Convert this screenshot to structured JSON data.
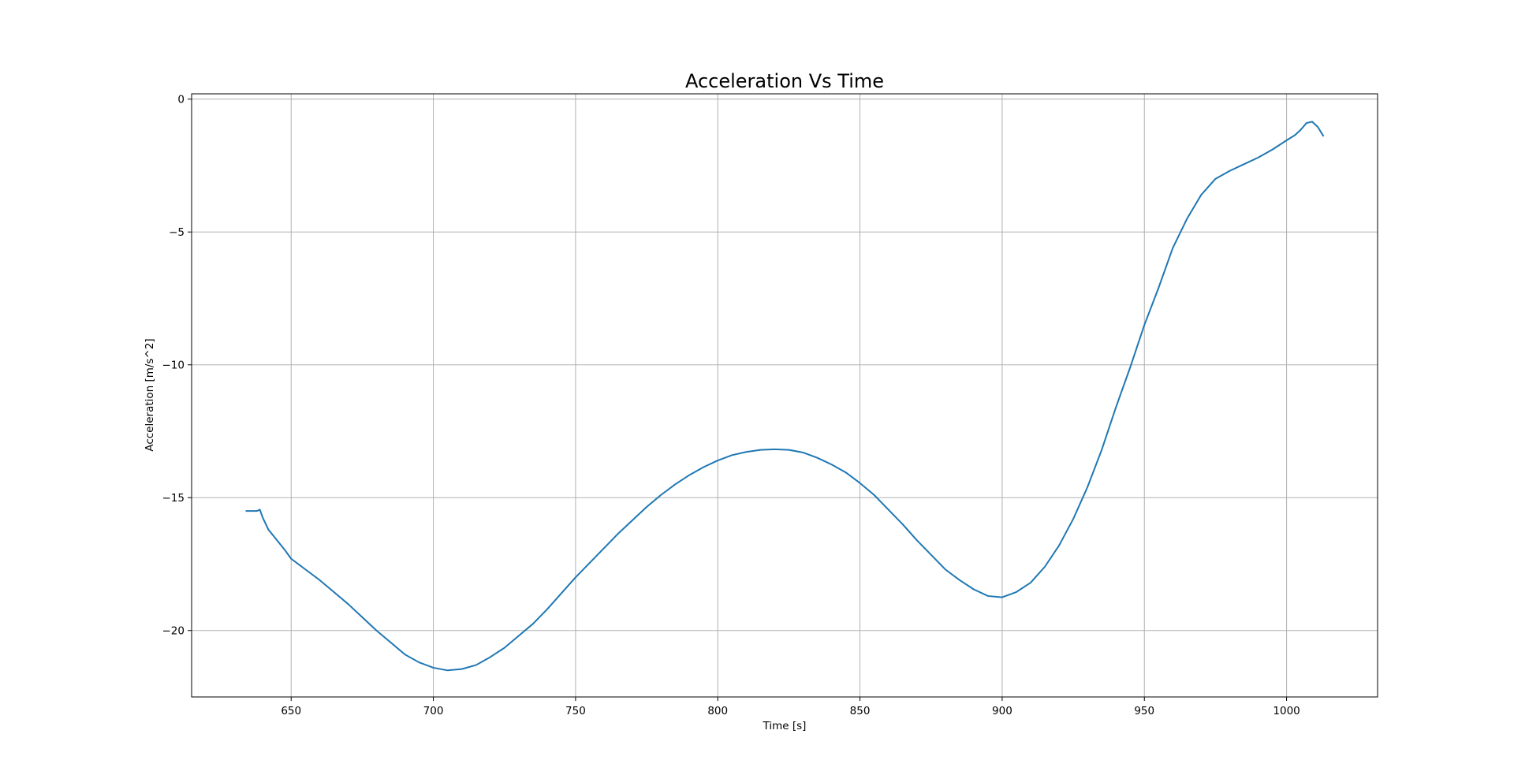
{
  "chart_data": {
    "type": "line",
    "title": "Acceleration Vs Time",
    "xlabel": "Time [s]",
    "ylabel": "Acceleration [m/s^2]",
    "xlim": [
      615,
      1032
    ],
    "ylim": [
      -22.5,
      0.2
    ],
    "grid": true,
    "xticks": [
      650,
      700,
      750,
      800,
      850,
      900,
      950,
      1000
    ],
    "yticks": [
      0,
      -5,
      -10,
      -15,
      -20
    ],
    "xtick_labels": [
      "650",
      "700",
      "750",
      "800",
      "850",
      "900",
      "950",
      "1000"
    ],
    "ytick_labels": [
      "0",
      "−5",
      "−10",
      "−15",
      "−20"
    ],
    "series": [
      {
        "color": "#1f77b4",
        "points": [
          [
            634,
            -15.5
          ],
          [
            638,
            -15.5
          ],
          [
            639,
            -15.45
          ],
          [
            640,
            -15.75
          ],
          [
            642,
            -16.2
          ],
          [
            645,
            -16.6
          ],
          [
            648,
            -17.0
          ],
          [
            650,
            -17.3
          ],
          [
            655,
            -17.7
          ],
          [
            660,
            -18.1
          ],
          [
            665,
            -18.55
          ],
          [
            670,
            -19.0
          ],
          [
            675,
            -19.5
          ],
          [
            680,
            -20.0
          ],
          [
            685,
            -20.45
          ],
          [
            690,
            -20.9
          ],
          [
            695,
            -21.2
          ],
          [
            700,
            -21.4
          ],
          [
            705,
            -21.5
          ],
          [
            710,
            -21.45
          ],
          [
            715,
            -21.3
          ],
          [
            720,
            -21.0
          ],
          [
            725,
            -20.65
          ],
          [
            730,
            -20.2
          ],
          [
            735,
            -19.75
          ],
          [
            740,
            -19.2
          ],
          [
            745,
            -18.6
          ],
          [
            750,
            -18.0
          ],
          [
            755,
            -17.45
          ],
          [
            760,
            -16.9
          ],
          [
            765,
            -16.35
          ],
          [
            770,
            -15.85
          ],
          [
            775,
            -15.35
          ],
          [
            780,
            -14.9
          ],
          [
            785,
            -14.5
          ],
          [
            790,
            -14.15
          ],
          [
            795,
            -13.85
          ],
          [
            800,
            -13.6
          ],
          [
            805,
            -13.4
          ],
          [
            810,
            -13.28
          ],
          [
            815,
            -13.2
          ],
          [
            820,
            -13.18
          ],
          [
            825,
            -13.2
          ],
          [
            830,
            -13.3
          ],
          [
            835,
            -13.5
          ],
          [
            840,
            -13.75
          ],
          [
            845,
            -14.05
          ],
          [
            850,
            -14.45
          ],
          [
            855,
            -14.9
          ],
          [
            860,
            -15.45
          ],
          [
            865,
            -16.0
          ],
          [
            870,
            -16.6
          ],
          [
            875,
            -17.15
          ],
          [
            880,
            -17.7
          ],
          [
            885,
            -18.1
          ],
          [
            890,
            -18.45
          ],
          [
            895,
            -18.7
          ],
          [
            900,
            -18.75
          ],
          [
            905,
            -18.55
          ],
          [
            910,
            -18.2
          ],
          [
            915,
            -17.6
          ],
          [
            920,
            -16.8
          ],
          [
            925,
            -15.8
          ],
          [
            930,
            -14.6
          ],
          [
            935,
            -13.2
          ],
          [
            940,
            -11.6
          ],
          [
            945,
            -10.1
          ],
          [
            950,
            -8.5
          ],
          [
            955,
            -7.1
          ],
          [
            960,
            -5.6
          ],
          [
            965,
            -4.5
          ],
          [
            970,
            -3.6
          ],
          [
            975,
            -3.0
          ],
          [
            980,
            -2.7
          ],
          [
            985,
            -2.45
          ],
          [
            990,
            -2.2
          ],
          [
            995,
            -1.9
          ],
          [
            1000,
            -1.55
          ],
          [
            1003,
            -1.35
          ],
          [
            1005,
            -1.15
          ],
          [
            1007,
            -0.9
          ],
          [
            1009,
            -0.85
          ],
          [
            1011,
            -1.05
          ],
          [
            1013,
            -1.4
          ]
        ]
      }
    ]
  }
}
